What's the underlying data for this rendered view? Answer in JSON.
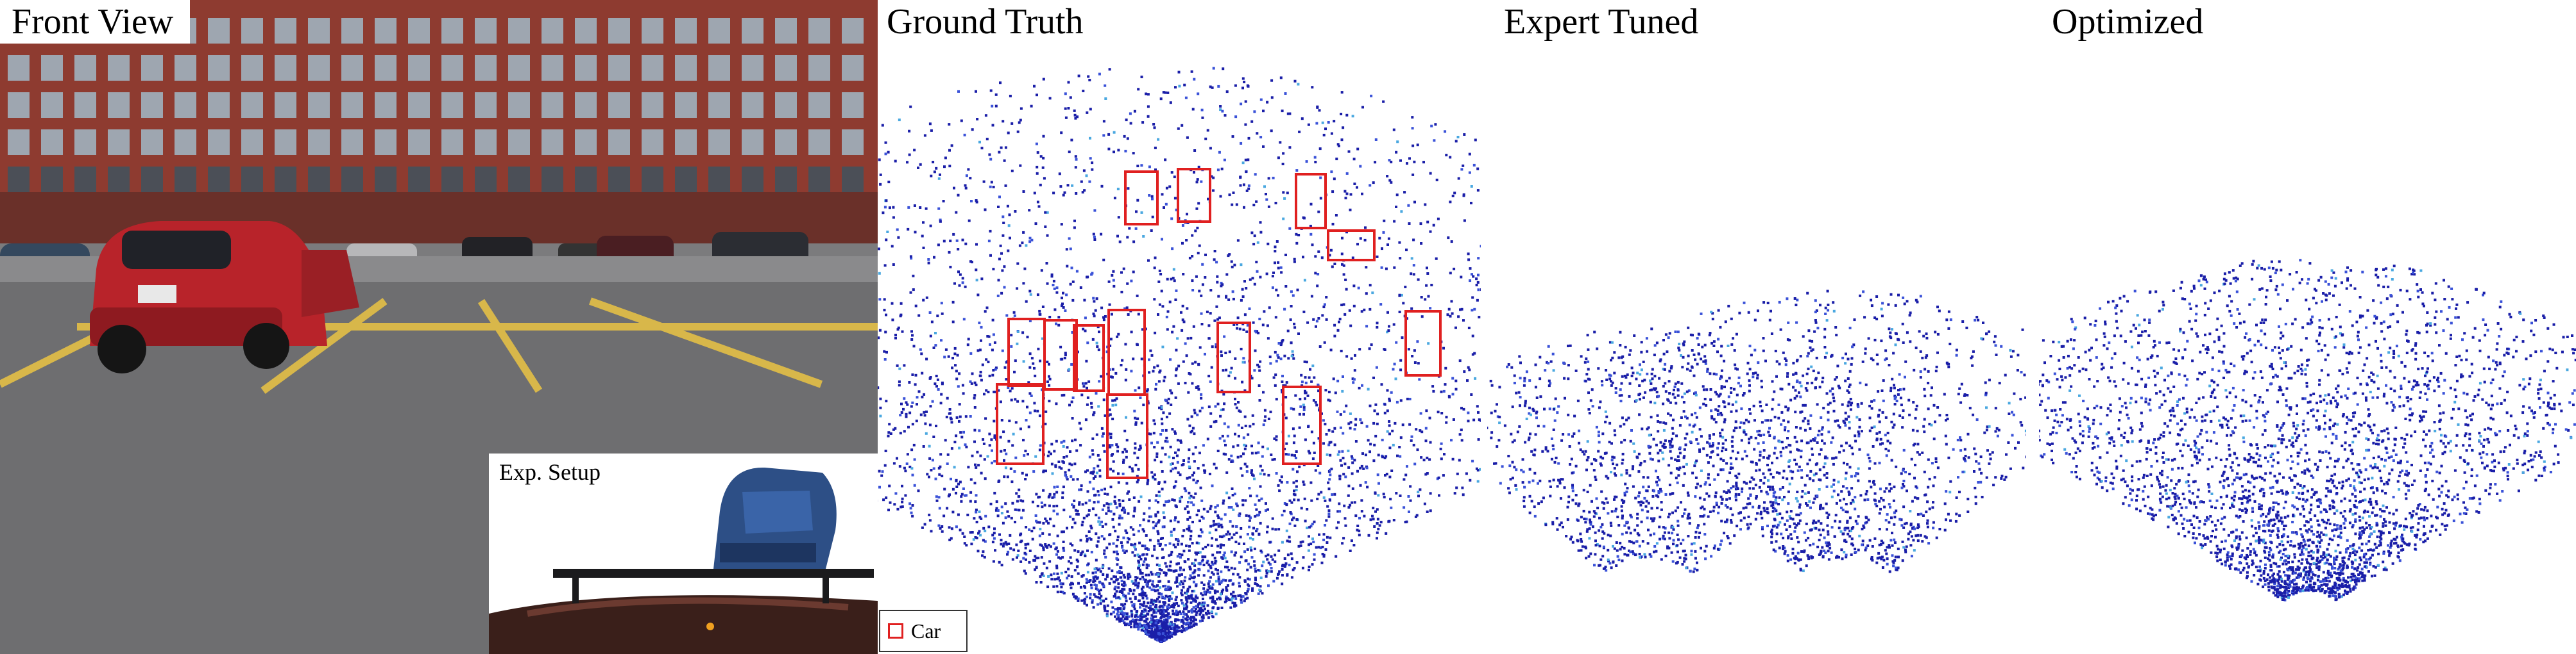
{
  "panels": [
    {
      "title": "Front View"
    },
    {
      "title": "Ground Truth"
    },
    {
      "title": "Expert Tuned"
    },
    {
      "title": "Optimized"
    }
  ],
  "inset": {
    "label": "Exp. Setup"
  },
  "legend": {
    "label": "Car",
    "color": "#e02020"
  },
  "colors": {
    "point_dark": "#1a1ea8",
    "point_mid": "#3a52d8",
    "point_light": "#4aa8e0"
  }
}
